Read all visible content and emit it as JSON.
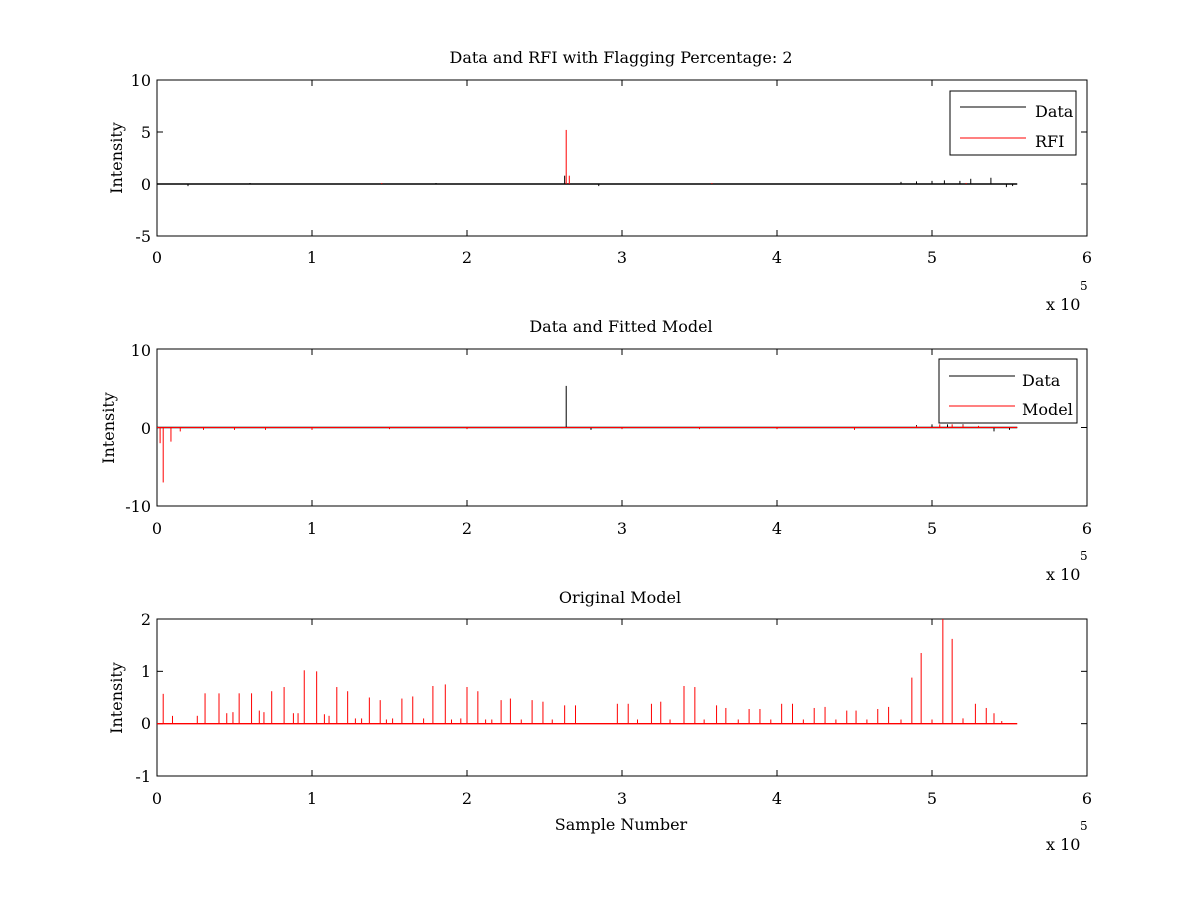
{
  "chart_data": [
    {
      "type": "line",
      "title": "Data and RFI with Flagging Percentage: 2",
      "xlabel": "",
      "ylabel": "Intensity",
      "xlim": [
        0,
        6
      ],
      "ylim": [
        -5,
        10
      ],
      "xticks": [
        "0",
        "1",
        "2",
        "3",
        "4",
        "5",
        "6"
      ],
      "yticks": [
        "-5",
        "0",
        "5",
        "10"
      ],
      "x_multiplier": "x 10",
      "x_multiplier_exp": "5",
      "legend": {
        "position": "top-right",
        "entries": [
          "Data",
          "RFI"
        ]
      },
      "series": [
        {
          "name": "Data",
          "color": "#000000",
          "baseline": 0,
          "x_end": 5.55,
          "spikes": [
            [
              0.2,
              -0.2
            ],
            [
              0.6,
              0.1
            ],
            [
              0.9,
              -0.05
            ],
            [
              1.8,
              0.1
            ],
            [
              2.63,
              0.8
            ],
            [
              2.85,
              -0.2
            ],
            [
              4.8,
              0.2
            ],
            [
              4.9,
              0.25
            ],
            [
              5.0,
              0.3
            ],
            [
              5.08,
              0.35
            ],
            [
              5.18,
              0.3
            ],
            [
              5.25,
              0.5
            ],
            [
              5.38,
              0.6
            ],
            [
              5.48,
              -0.3
            ],
            [
              5.52,
              -0.2
            ]
          ]
        },
        {
          "name": "RFI",
          "color": "#ff0000",
          "baseline": 0,
          "spikes": [
            [
              2.64,
              5.2
            ],
            [
              2.66,
              0.8
            ],
            [
              1.45,
              0.1
            ],
            [
              3.58,
              0.1
            ],
            [
              5.22,
              0.1
            ]
          ]
        }
      ]
    },
    {
      "type": "line",
      "title": "Data and Fitted Model",
      "xlabel": "",
      "ylabel": "Intensity",
      "xlim": [
        0,
        6
      ],
      "ylim": [
        -10,
        10
      ],
      "xticks": [
        "0",
        "1",
        "2",
        "3",
        "4",
        "5",
        "6"
      ],
      "yticks": [
        "-10",
        "0",
        "10"
      ],
      "x_multiplier": "x 10",
      "x_multiplier_exp": "5",
      "legend": {
        "position": "top-right",
        "entries": [
          "Data",
          "Model"
        ]
      },
      "series": [
        {
          "name": "Data",
          "color": "#000000",
          "baseline": 0,
          "x_end": 5.55,
          "spikes": [
            [
              2.64,
              5.3
            ],
            [
              2.8,
              -0.3
            ],
            [
              4.9,
              0.3
            ],
            [
              5.0,
              0.4
            ],
            [
              5.1,
              0.4
            ],
            [
              5.2,
              0.4
            ],
            [
              5.4,
              -0.5
            ],
            [
              5.5,
              -0.3
            ]
          ]
        },
        {
          "name": "Model",
          "color": "#ff0000",
          "baseline": 0,
          "x_end": 5.55,
          "spikes": [
            [
              0.02,
              -2.0
            ],
            [
              0.04,
              -7.0
            ],
            [
              0.09,
              -1.8
            ],
            [
              0.15,
              -0.5
            ],
            [
              0.3,
              -0.3
            ],
            [
              0.5,
              -0.3
            ],
            [
              0.7,
              -0.3
            ],
            [
              1.0,
              -0.3
            ],
            [
              1.5,
              -0.2
            ],
            [
              2.0,
              -0.2
            ],
            [
              3.0,
              -0.2
            ],
            [
              3.5,
              -0.2
            ],
            [
              4.0,
              -0.2
            ],
            [
              4.5,
              -0.3
            ],
            [
              4.9,
              0.2
            ],
            [
              5.05,
              0.4
            ],
            [
              5.13,
              0.4
            ],
            [
              5.2,
              0.3
            ],
            [
              5.3,
              0.2
            ]
          ]
        }
      ]
    },
    {
      "type": "line",
      "title": "Original Model",
      "xlabel": "Sample Number",
      "ylabel": "Intensity",
      "xlim": [
        0,
        6
      ],
      "ylim": [
        -1,
        2
      ],
      "xticks": [
        "0",
        "1",
        "2",
        "3",
        "4",
        "5",
        "6"
      ],
      "yticks": [
        "-1",
        "0",
        "1",
        "2"
      ],
      "x_multiplier": "x 10",
      "x_multiplier_exp": "5",
      "legend": null,
      "series": [
        {
          "name": "",
          "color": "#ff0000",
          "baseline": 0,
          "x_end": 5.55,
          "spikes": [
            [
              0.04,
              0.57
            ],
            [
              0.1,
              0.15
            ],
            [
              0.26,
              0.15
            ],
            [
              0.31,
              0.58
            ],
            [
              0.4,
              0.58
            ],
            [
              0.45,
              0.2
            ],
            [
              0.49,
              0.22
            ],
            [
              0.53,
              0.58
            ],
            [
              0.61,
              0.58
            ],
            [
              0.66,
              0.25
            ],
            [
              0.69,
              0.22
            ],
            [
              0.74,
              0.62
            ],
            [
              0.82,
              0.7
            ],
            [
              0.88,
              0.2
            ],
            [
              0.91,
              0.2
            ],
            [
              0.95,
              1.02
            ],
            [
              1.03,
              1.0
            ],
            [
              1.08,
              0.18
            ],
            [
              1.11,
              0.15
            ],
            [
              1.16,
              0.7
            ],
            [
              1.23,
              0.62
            ],
            [
              1.28,
              0.1
            ],
            [
              1.32,
              0.1
            ],
            [
              1.37,
              0.5
            ],
            [
              1.44,
              0.45
            ],
            [
              1.48,
              0.08
            ],
            [
              1.52,
              0.1
            ],
            [
              1.58,
              0.48
            ],
            [
              1.65,
              0.52
            ],
            [
              1.72,
              0.1
            ],
            [
              1.78,
              0.72
            ],
            [
              1.86,
              0.75
            ],
            [
              1.9,
              0.08
            ],
            [
              1.96,
              0.1
            ],
            [
              2.0,
              0.7
            ],
            [
              2.07,
              0.62
            ],
            [
              2.12,
              0.08
            ],
            [
              2.16,
              0.08
            ],
            [
              2.22,
              0.45
            ],
            [
              2.28,
              0.48
            ],
            [
              2.35,
              0.08
            ],
            [
              2.42,
              0.45
            ],
            [
              2.49,
              0.42
            ],
            [
              2.55,
              0.08
            ],
            [
              2.63,
              0.35
            ],
            [
              2.7,
              0.35
            ],
            [
              2.97,
              0.38
            ],
            [
              3.04,
              0.38
            ],
            [
              3.1,
              0.08
            ],
            [
              3.19,
              0.38
            ],
            [
              3.25,
              0.42
            ],
            [
              3.31,
              0.08
            ],
            [
              3.4,
              0.72
            ],
            [
              3.47,
              0.7
            ],
            [
              3.53,
              0.08
            ],
            [
              3.61,
              0.35
            ],
            [
              3.67,
              0.3
            ],
            [
              3.75,
              0.08
            ],
            [
              3.82,
              0.28
            ],
            [
              3.89,
              0.28
            ],
            [
              3.96,
              0.08
            ],
            [
              4.03,
              0.38
            ],
            [
              4.1,
              0.38
            ],
            [
              4.17,
              0.08
            ],
            [
              4.24,
              0.3
            ],
            [
              4.31,
              0.32
            ],
            [
              4.38,
              0.08
            ],
            [
              4.45,
              0.25
            ],
            [
              4.51,
              0.25
            ],
            [
              4.58,
              0.08
            ],
            [
              4.65,
              0.28
            ],
            [
              4.72,
              0.32
            ],
            [
              4.8,
              0.08
            ],
            [
              4.87,
              0.88
            ],
            [
              4.93,
              1.35
            ],
            [
              5.0,
              0.08
            ],
            [
              5.07,
              2.0
            ],
            [
              5.13,
              1.62
            ],
            [
              5.2,
              0.1
            ],
            [
              5.28,
              0.38
            ],
            [
              5.35,
              0.3
            ],
            [
              5.4,
              0.2
            ],
            [
              5.45,
              0.05
            ]
          ]
        }
      ]
    }
  ]
}
